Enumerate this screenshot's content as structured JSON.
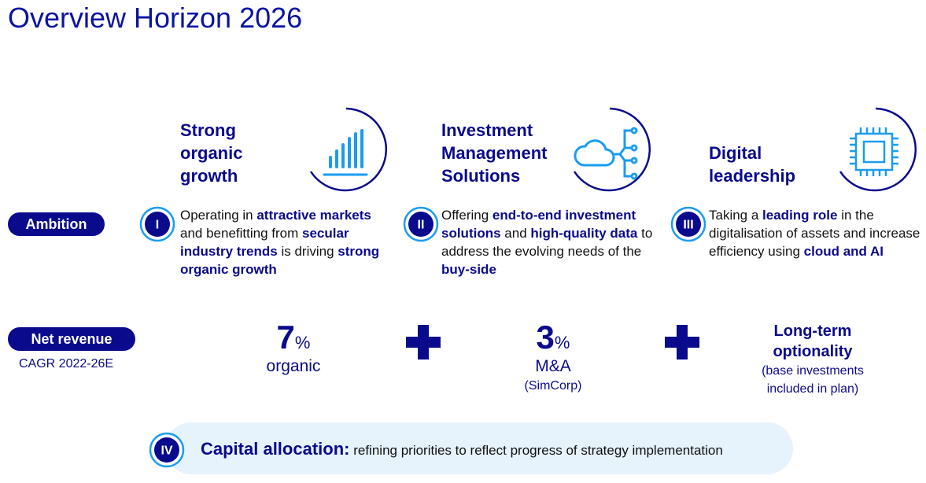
{
  "title": "Overview Horizon 2026",
  "labels": {
    "ambition": "Ambition",
    "net_revenue": "Net revenue",
    "cagr": "CAGR 2022-26E"
  },
  "pillars": [
    {
      "numeral": "I",
      "heading": [
        "Strong",
        "organic",
        "growth"
      ],
      "text": [
        {
          "text": "Operating in "
        },
        {
          "text": "attractive markets",
          "bold": true
        },
        {
          "text": " and benefitting from "
        },
        {
          "text": "secular industry trends",
          "bold": true
        },
        {
          "text": " is driving "
        },
        {
          "text": "strong organic growth",
          "bold": true
        }
      ]
    },
    {
      "numeral": "II",
      "heading": [
        "Investment",
        "Management",
        "Solutions"
      ],
      "text": [
        {
          "text": "Offering "
        },
        {
          "text": "end-to-end investment solutions",
          "bold": true
        },
        {
          "text": " and "
        },
        {
          "text": "high-quality data",
          "bold": true
        },
        {
          "text": " to address the evolving needs of the "
        },
        {
          "text": "buy-side",
          "bold": true
        }
      ]
    },
    {
      "numeral": "III",
      "heading": [
        "Digital",
        "leadership"
      ],
      "text": [
        {
          "text": "Taking a "
        },
        {
          "text": "leading role",
          "bold": true
        },
        {
          "text": " in the digitalisation of assets and increase efficiency using "
        },
        {
          "text": "cloud and AI",
          "bold": true
        }
      ]
    }
  ],
  "revenue": [
    {
      "value": "7",
      "unit": "%",
      "label": "organic"
    },
    {
      "value": "3",
      "unit": "%",
      "label": "M&A",
      "note": "(SimCorp)"
    },
    {
      "label": "Long-term optionality",
      "note": "(base investments included in plan)"
    }
  ],
  "capital": {
    "numeral": "IV",
    "title": "Capital allocation:",
    "text": "refining priorities to reflect progress of strategy implementation"
  }
}
